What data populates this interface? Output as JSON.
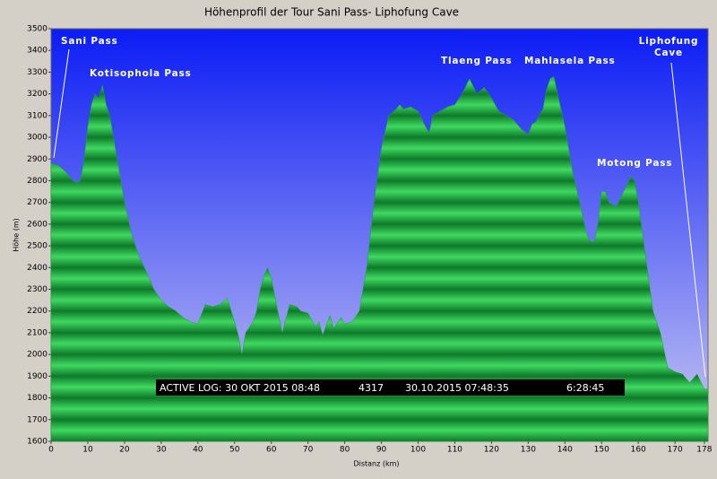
{
  "chart_data": {
    "type": "area",
    "title": "Höhenprofil der Tour Sani Pass- Liphofung Cave",
    "x_label": "Distanz (km)",
    "y_label": "Höhe (m)",
    "x": [
      0,
      2,
      4,
      6,
      7,
      8,
      9,
      10,
      11,
      12,
      13,
      14,
      15,
      16,
      17,
      18,
      19,
      20,
      22,
      24,
      26,
      28,
      30,
      32,
      34,
      36,
      38,
      40,
      42,
      44,
      46,
      48,
      50,
      51,
      52,
      53,
      55,
      56,
      57,
      58,
      59,
      60,
      62,
      63,
      65,
      67,
      68,
      70,
      72,
      73,
      74,
      76,
      77,
      79,
      80,
      82,
      84,
      86,
      88,
      90,
      92,
      94,
      95,
      96,
      98,
      100,
      102,
      103,
      104,
      106,
      108,
      110,
      112,
      114,
      116,
      118,
      120,
      122,
      124,
      126,
      128,
      130,
      131,
      132,
      134,
      135,
      136,
      137,
      138,
      140,
      142,
      144,
      146,
      147,
      148,
      149,
      150,
      151,
      152,
      154,
      156,
      158,
      159,
      160,
      162,
      164,
      166,
      168,
      170,
      172,
      174,
      176,
      178,
      179
    ],
    "series": [
      {
        "name": "Höhe",
        "color": "#1aa63a",
        "values": [
          2880,
          2870,
          2840,
          2800,
          2790,
          2800,
          2900,
          3050,
          3150,
          3200,
          3180,
          3240,
          3150,
          3100,
          3000,
          2900,
          2800,
          2700,
          2550,
          2450,
          2380,
          2300,
          2250,
          2220,
          2200,
          2170,
          2150,
          2140,
          2230,
          2220,
          2230,
          2260,
          2150,
          2090,
          2000,
          2100,
          2150,
          2200,
          2300,
          2360,
          2400,
          2350,
          2180,
          2100,
          2230,
          2220,
          2200,
          2190,
          2130,
          2150,
          2090,
          2180,
          2120,
          2170,
          2140,
          2150,
          2200,
          2400,
          2700,
          2950,
          3100,
          3130,
          3150,
          3130,
          3140,
          3120,
          3050,
          3020,
          3100,
          3120,
          3140,
          3150,
          3200,
          3270,
          3200,
          3230,
          3180,
          3120,
          3100,
          3080,
          3040,
          3010,
          3060,
          3070,
          3130,
          3220,
          3270,
          3280,
          3200,
          3050,
          2850,
          2700,
          2550,
          2520,
          2520,
          2600,
          2750,
          2750,
          2700,
          2680,
          2750,
          2820,
          2800,
          2700,
          2450,
          2200,
          2100,
          1940,
          1920,
          1910,
          1870,
          1910,
          1840,
          1840
        ]
      }
    ],
    "xlim": [
      0,
      179
    ],
    "ylim": [
      1600,
      3500
    ],
    "xticks": [
      0,
      10,
      20,
      30,
      40,
      50,
      60,
      70,
      80,
      90,
      100,
      110,
      120,
      130,
      140,
      150,
      160,
      170,
      178
    ],
    "yticks": [
      1600,
      1700,
      1800,
      1900,
      2000,
      2100,
      2200,
      2300,
      2400,
      2500,
      2600,
      2700,
      2800,
      2900,
      3000,
      3100,
      3200,
      3300,
      3400,
      3500
    ],
    "annotations": [
      [
        "Sani Pass"
      ],
      [
        "Kotisophola Pass"
      ],
      [
        "Tlaeng Pass"
      ],
      [
        "Mahlasela Pass"
      ],
      [
        "Motong Pass"
      ],
      [
        "Liphofung",
        "Cave"
      ]
    ],
    "info_bar": [
      "ACTIVE LOG: 30 OKT 2015 08:48",
      "4317",
      "30.10.2015 07:48:35",
      "6:28:45"
    ]
  }
}
